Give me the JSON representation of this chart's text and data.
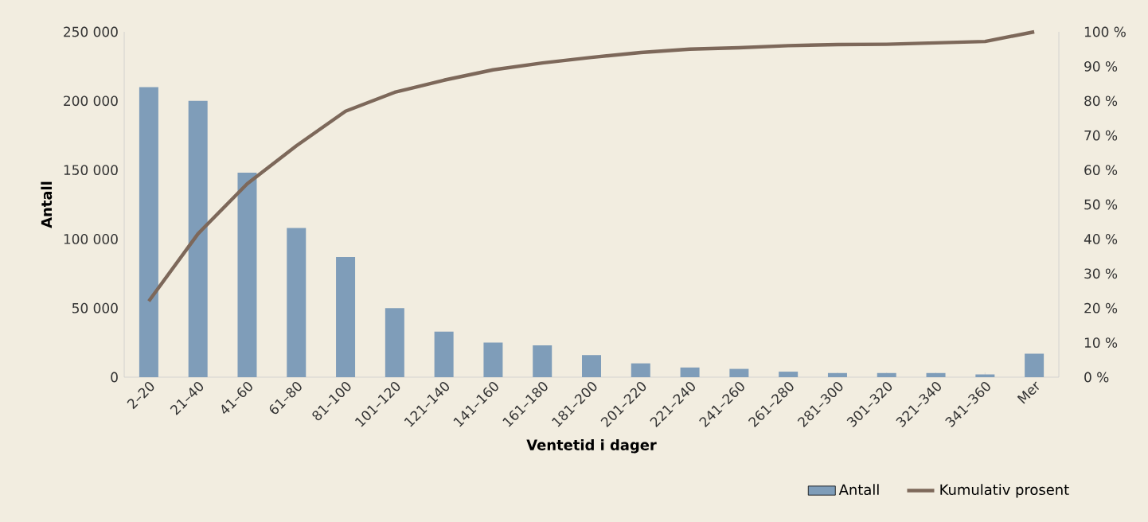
{
  "chart_data": {
    "type": "bar",
    "xlabel": "Ventetid i dager",
    "ylabel": "Antall",
    "categories": [
      "2–20",
      "21–40",
      "41–60",
      "61–80",
      "81–100",
      "101–120",
      "121–140",
      "141–160",
      "161–180",
      "181–200",
      "201–220",
      "221–240",
      "241–260",
      "261–280",
      "281–300",
      "301–320",
      "321–340",
      "341–360",
      "Mer"
    ],
    "series": [
      {
        "name": "Antall",
        "color": "#7f9db9",
        "values": [
          210000,
          200000,
          148000,
          108000,
          87000,
          50000,
          33000,
          25000,
          23000,
          16000,
          10000,
          7000,
          6000,
          4000,
          3000,
          3000,
          3000,
          2000,
          17000
        ]
      },
      {
        "name": "Kumulativ prosent",
        "type": "line",
        "axis": "y2",
        "color": "#7d685a",
        "values": [
          22,
          41.5,
          56,
          67,
          77,
          82.5,
          86,
          89,
          91,
          92.6,
          94,
          95,
          95.4,
          96,
          96.3,
          96.4,
          96.8,
          97.2,
          100
        ]
      }
    ],
    "ylim": [
      0,
      250000
    ],
    "yticks": [
      {
        "value": 0,
        "label": "0"
      },
      {
        "value": 50000,
        "label": "50 000"
      },
      {
        "value": 100000,
        "label": "100 000"
      },
      {
        "value": 150000,
        "label": "150 000"
      },
      {
        "value": 200000,
        "label": "200 000"
      },
      {
        "value": 250000,
        "label": "250 000"
      }
    ],
    "y2lim": [
      0,
      100
    ],
    "y2ticks": [
      {
        "value": 0,
        "label": "0 %"
      },
      {
        "value": 10,
        "label": "10 %"
      },
      {
        "value": 20,
        "label": "20 %"
      },
      {
        "value": 30,
        "label": "30 %"
      },
      {
        "value": 40,
        "label": "40 %"
      },
      {
        "value": 50,
        "label": "50 %"
      },
      {
        "value": 60,
        "label": "60 %"
      },
      {
        "value": 70,
        "label": "70 %"
      },
      {
        "value": 80,
        "label": "80 %"
      },
      {
        "value": 90,
        "label": "90 %"
      },
      {
        "value": 100,
        "label": "100 %"
      }
    ],
    "legend": "bottom right",
    "grid": false
  }
}
